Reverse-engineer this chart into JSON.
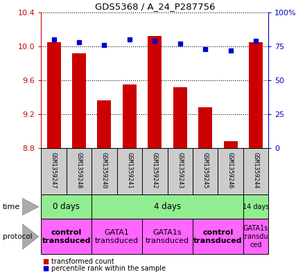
{
  "title": "GDS5368 / A_24_P287756",
  "samples": [
    "GSM1359247",
    "GSM1359248",
    "GSM1359240",
    "GSM1359241",
    "GSM1359242",
    "GSM1359243",
    "GSM1359245",
    "GSM1359246",
    "GSM1359244"
  ],
  "transformed_counts": [
    10.05,
    9.92,
    9.36,
    9.55,
    10.12,
    9.52,
    9.28,
    8.88,
    10.05
  ],
  "percentile_ranks": [
    80,
    78,
    76,
    80,
    79,
    77,
    73,
    72,
    79
  ],
  "ylim": [
    8.8,
    10.4
  ],
  "yticks_left": [
    8.8,
    9.2,
    9.6,
    10.0,
    10.4
  ],
  "yticks_right": [
    0,
    25,
    50,
    75,
    100
  ],
  "bar_color": "#cc0000",
  "dot_color": "#0000cc",
  "bg_color": "#ffffff",
  "sample_box_color": "#cccccc",
  "green_color": "#90EE90",
  "pink_color": "#FF66FF",
  "time_groups": [
    {
      "label": "0 days",
      "start": 0,
      "end": 2
    },
    {
      "label": "4 days",
      "start": 2,
      "end": 8
    },
    {
      "label": "14 days",
      "start": 8,
      "end": 9
    }
  ],
  "protocol_groups": [
    {
      "label": "control\ntransduced",
      "start": 0,
      "end": 2,
      "bold": true
    },
    {
      "label": "GATA1\ntransduced",
      "start": 2,
      "end": 4,
      "bold": false
    },
    {
      "label": "GATA1s\ntransduced",
      "start": 4,
      "end": 6,
      "bold": false
    },
    {
      "label": "control\ntransduced",
      "start": 6,
      "end": 8,
      "bold": true
    },
    {
      "label": "GATA1s\ntransdu\nced",
      "start": 8,
      "end": 9,
      "bold": false
    }
  ]
}
